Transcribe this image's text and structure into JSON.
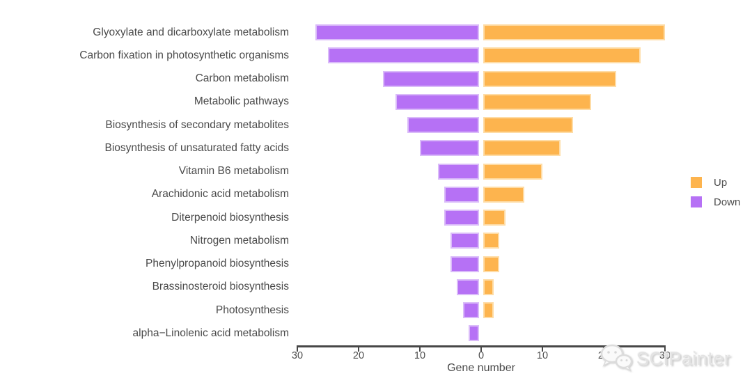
{
  "chart_data": {
    "type": "bar",
    "variant": "diverging-horizontal",
    "title": "",
    "xlabel": "Gene number",
    "ylabel": "",
    "grid": false,
    "background": "#ffffff",
    "x_axis": {
      "tick_values": [
        -30,
        -20,
        -10,
        0,
        10,
        20,
        30
      ],
      "tick_labels": [
        "30",
        "20",
        "10",
        "0",
        "10",
        "20",
        "30"
      ],
      "xlim": [
        -31,
        31
      ]
    },
    "categories": [
      "Glyoxylate and dicarboxylate metabolism",
      "Carbon fixation in photosynthetic organisms",
      "Carbon metabolism",
      "Metabolic pathways",
      "Biosynthesis of secondary metabolites",
      "Biosynthesis of unsaturated fatty acids",
      "Vitamin B6 metabolism",
      "Arachidonic acid metabolism",
      "Diterpenoid biosynthesis",
      "Nitrogen metabolism",
      "Phenylpropanoid biosynthesis",
      "Brassinosteroid biosynthesis",
      "Photosynthesis",
      "alpha−Linolenic acid metabolism"
    ],
    "series": [
      {
        "name": "Up",
        "direction": "right",
        "color": "#FDB44E",
        "values": [
          30,
          26,
          22,
          18,
          15,
          13,
          10,
          7,
          4,
          3,
          3,
          2,
          2,
          0
        ]
      },
      {
        "name": "Down",
        "direction": "left",
        "color": "#B671F5",
        "values": [
          27,
          25,
          16,
          14,
          12,
          10,
          7,
          6,
          6,
          5,
          5,
          4,
          3,
          2
        ]
      }
    ],
    "legend_position": "right"
  },
  "legend": {
    "up": "Up",
    "down": "Down"
  },
  "watermark": {
    "text": "SCIPainter",
    "icon": "wechat-chat-bubbles-icon"
  },
  "colors": {
    "up_fill": "#FDB44E",
    "up_edge": "#FEDCA6",
    "down_fill": "#B671F5",
    "down_edge": "#DABBF9",
    "axis_line": "#474747",
    "tick_text": "#4d4d4d",
    "label_text": "#4a4a4a",
    "watermark_text": "#e3e3e3"
  }
}
